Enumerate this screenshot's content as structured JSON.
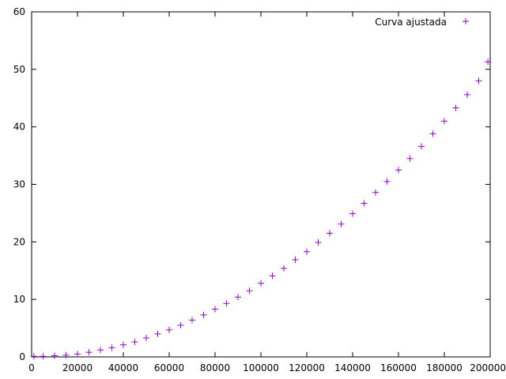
{
  "chart_data": {
    "type": "scatter",
    "title": "",
    "xlabel": "",
    "ylabel": "",
    "xlim": [
      0,
      200000
    ],
    "ylim": [
      0,
      60
    ],
    "x_ticks": [
      "0",
      "20000",
      "40000",
      "60000",
      "80000",
      "100000",
      "120000",
      "140000",
      "160000",
      "180000",
      "200000"
    ],
    "y_ticks": [
      "0",
      "10",
      "20",
      "30",
      "40",
      "50",
      "60"
    ],
    "x_tick_values": [
      0,
      20000,
      40000,
      60000,
      80000,
      100000,
      120000,
      140000,
      160000,
      180000,
      200000
    ],
    "y_tick_values": [
      0,
      10,
      20,
      30,
      40,
      50,
      60
    ],
    "grid": false,
    "legend_position": "top-right",
    "marker": "+",
    "series": [
      {
        "name": "Curva ajustada",
        "color": "#9400d3",
        "x": [
          1000,
          5000,
          10000,
          15000,
          20000,
          25000,
          30000,
          35000,
          40000,
          45000,
          50000,
          55000,
          60000,
          65000,
          70000,
          75000,
          80000,
          85000,
          90000,
          95000,
          100000,
          105000,
          110000,
          115000,
          120000,
          125000,
          130000,
          135000,
          140000,
          145000,
          150000,
          155000,
          160000,
          165000,
          170000,
          175000,
          180000,
          185000,
          190000,
          195000,
          199000
        ],
        "y": [
          0.1,
          0.1,
          0.2,
          0.3,
          0.5,
          0.8,
          1.2,
          1.6,
          2.1,
          2.6,
          3.3,
          4.0,
          4.7,
          5.5,
          6.4,
          7.3,
          8.3,
          9.3,
          10.4,
          11.5,
          12.8,
          14.1,
          15.4,
          16.9,
          18.3,
          19.9,
          21.5,
          23.1,
          24.9,
          26.7,
          28.6,
          30.5,
          32.5,
          34.5,
          36.6,
          38.8,
          41.0,
          43.3,
          45.6,
          48.0,
          51.3
        ]
      }
    ]
  }
}
